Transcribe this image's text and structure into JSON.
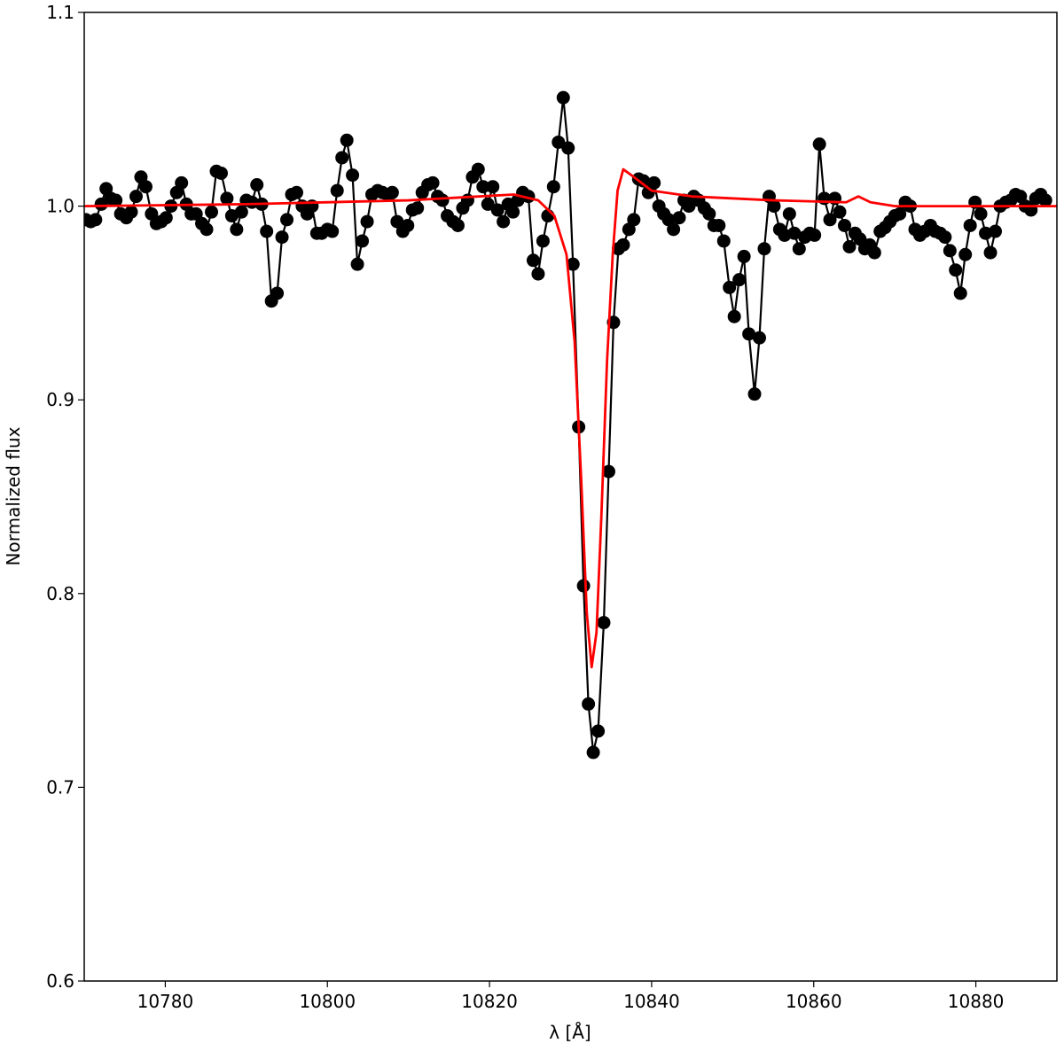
{
  "chart_data": {
    "type": "line",
    "xlabel": "λ [Å]",
    "ylabel": "Normalized flux",
    "xlim": [
      10770,
      10890
    ],
    "ylim": [
      0.6,
      1.1
    ],
    "xticks": [
      10780,
      10800,
      10820,
      10840,
      10860,
      10880
    ],
    "yticks": [
      0.6,
      0.7,
      0.8,
      0.9,
      {
        "value": 1,
        "label": "1.0"
      },
      1.1
    ],
    "series": [
      {
        "color": "#000000",
        "marker": true,
        "x": [
          10770.2,
          10770.8,
          10771.4,
          10772.1,
          10772.7,
          10773.3,
          10773.9,
          10774.5,
          10775.2,
          10775.8,
          10776.4,
          10777.0,
          10777.6,
          10778.3,
          10778.9,
          10779.5,
          10780.1,
          10780.7,
          10781.4,
          10782.0,
          10782.6,
          10783.2,
          10783.8,
          10784.5,
          10785.1,
          10785.7,
          10786.3,
          10786.9,
          10787.6,
          10788.2,
          10788.8,
          10789.4,
          10790.0,
          10790.7,
          10791.3,
          10791.9,
          10792.5,
          10793.1,
          10793.8,
          10794.4,
          10795.0,
          10795.6,
          10796.2,
          10796.9,
          10797.5,
          10798.1,
          10798.7,
          10799.3,
          10800.0,
          10800.6,
          10801.2,
          10801.8,
          10802.4,
          10803.1,
          10803.7,
          10804.3,
          10804.9,
          10805.5,
          10806.2,
          10806.8,
          10807.4,
          10808.0,
          10808.6,
          10809.3,
          10809.9,
          10810.5,
          10811.1,
          10811.7,
          10812.4,
          10813.0,
          10813.6,
          10814.2,
          10814.8,
          10815.5,
          10816.1,
          10816.7,
          10817.3,
          10817.9,
          10818.6,
          10819.2,
          10819.8,
          10820.4,
          10821.0,
          10821.7,
          10822.3,
          10822.9,
          10823.5,
          10824.1,
          10824.8,
          10825.4,
          10826.0,
          10826.6,
          10827.2,
          10827.9,
          10828.5,
          10829.1,
          10829.7,
          10830.3,
          10831.0,
          10831.6,
          10832.2,
          10832.8,
          10833.4,
          10834.1,
          10834.7,
          10835.3,
          10835.9,
          10836.5,
          10837.2,
          10837.8,
          10838.4,
          10839.0,
          10839.6,
          10840.3,
          10840.9,
          10841.5,
          10842.1,
          10842.7,
          10843.4,
          10844.0,
          10844.6,
          10845.2,
          10845.8,
          10846.5,
          10847.1,
          10847.7,
          10848.3,
          10848.9,
          10849.6,
          10850.2,
          10850.8,
          10851.4,
          10852.0,
          10852.7,
          10853.3,
          10853.9,
          10854.5,
          10855.1,
          10855.8,
          10856.4,
          10857.0,
          10857.6,
          10858.2,
          10858.9,
          10859.5,
          10860.1,
          10860.7,
          10861.3,
          10862.0,
          10862.6,
          10863.2,
          10863.8,
          10864.4,
          10865.1,
          10865.7,
          10866.3,
          10866.9,
          10867.5,
          10868.2,
          10868.8,
          10869.4,
          10870.0,
          10870.6,
          10871.3,
          10871.9,
          10872.5,
          10873.1,
          10873.7,
          10874.4,
          10875.0,
          10875.6,
          10876.2,
          10876.8,
          10877.5,
          10878.1,
          10878.7,
          10879.3,
          10879.9,
          10880.6,
          10881.2,
          10881.8,
          10882.4,
          10883.0,
          10883.7,
          10884.3,
          10884.9,
          10885.5,
          10886.1,
          10886.8,
          10887.4,
          10888.0,
          10888.6
        ],
        "values": [
          0.993,
          0.992,
          0.993,
          1.001,
          1.009,
          1.004,
          1.003,
          0.996,
          0.994,
          0.997,
          1.005,
          1.015,
          1.01,
          0.996,
          0.991,
          0.992,
          0.994,
          1.0,
          1.007,
          1.012,
          1.001,
          0.996,
          0.996,
          0.991,
          0.988,
          0.997,
          1.018,
          1.017,
          1.004,
          0.995,
          0.988,
          0.997,
          1.003,
          1.002,
          1.011,
          1.001,
          0.987,
          0.951,
          0.955,
          0.984,
          0.993,
          1.006,
          1.007,
          1.0,
          0.996,
          1.0,
          0.986,
          0.986,
          0.988,
          0.987,
          1.008,
          1.025,
          1.034,
          1.016,
          0.97,
          0.982,
          0.992,
          1.006,
          1.008,
          1.007,
          1.006,
          1.007,
          0.992,
          0.987,
          0.99,
          0.998,
          0.999,
          1.007,
          1.011,
          1.012,
          1.005,
          1.003,
          0.995,
          0.992,
          0.99,
          0.999,
          1.003,
          1.015,
          1.019,
          1.01,
          1.001,
          1.01,
          0.998,
          0.992,
          1.001,
          0.997,
          1.003,
          1.007,
          1.005,
          0.972,
          0.965,
          0.982,
          0.995,
          1.01,
          1.033,
          1.056,
          1.03,
          0.97,
          0.886,
          0.804,
          0.743,
          0.718,
          0.729,
          0.785,
          0.863,
          0.94,
          0.978,
          0.98,
          0.988,
          0.993,
          1.014,
          1.013,
          1.007,
          1.012,
          1.0,
          0.996,
          0.993,
          0.988,
          0.994,
          1.003,
          1.0,
          1.005,
          1.003,
          0.999,
          0.996,
          0.99,
          0.99,
          0.982,
          0.958,
          0.943,
          0.962,
          0.974,
          0.934,
          0.903,
          0.932,
          0.978,
          1.005,
          1.0,
          0.988,
          0.985,
          0.996,
          0.986,
          0.978,
          0.984,
          0.986,
          0.985,
          1.032,
          1.004,
          0.993,
          1.004,
          0.997,
          0.99,
          0.979,
          0.986,
          0.983,
          0.978,
          0.98,
          0.976,
          0.987,
          0.989,
          0.992,
          0.995,
          0.996,
          1.002,
          1.0,
          0.988,
          0.985,
          0.987,
          0.99,
          0.987,
          0.986,
          0.984,
          0.977,
          0.967,
          0.955,
          0.975,
          0.99,
          1.002,
          0.996,
          0.986,
          0.976,
          0.987,
          1.0,
          1.002,
          1.003,
          1.006,
          1.005,
          1.0,
          0.998,
          1.004,
          1.006,
          1.003
        ]
      },
      {
        "color": "#ff0000",
        "marker": false,
        "x": [
          10770,
          10790,
          10810,
          10823,
          10826,
          10828,
          10829.5,
          10830.5,
          10831.3,
          10832,
          10832.6,
          10833.2,
          10833.8,
          10834.5,
          10835.2,
          10835.8,
          10836.5,
          10837.5,
          10840,
          10845,
          10855,
          10864,
          10865.5,
          10867,
          10870,
          10890
        ],
        "values": [
          1.0,
          1.001,
          1.003,
          1.006,
          1.003,
          0.995,
          0.975,
          0.93,
          0.86,
          0.79,
          0.762,
          0.78,
          0.84,
          0.92,
          0.975,
          1.008,
          1.019,
          1.016,
          1.008,
          1.005,
          1.003,
          1.002,
          1.005,
          1.002,
          1.0,
          1.0
        ]
      }
    ]
  }
}
